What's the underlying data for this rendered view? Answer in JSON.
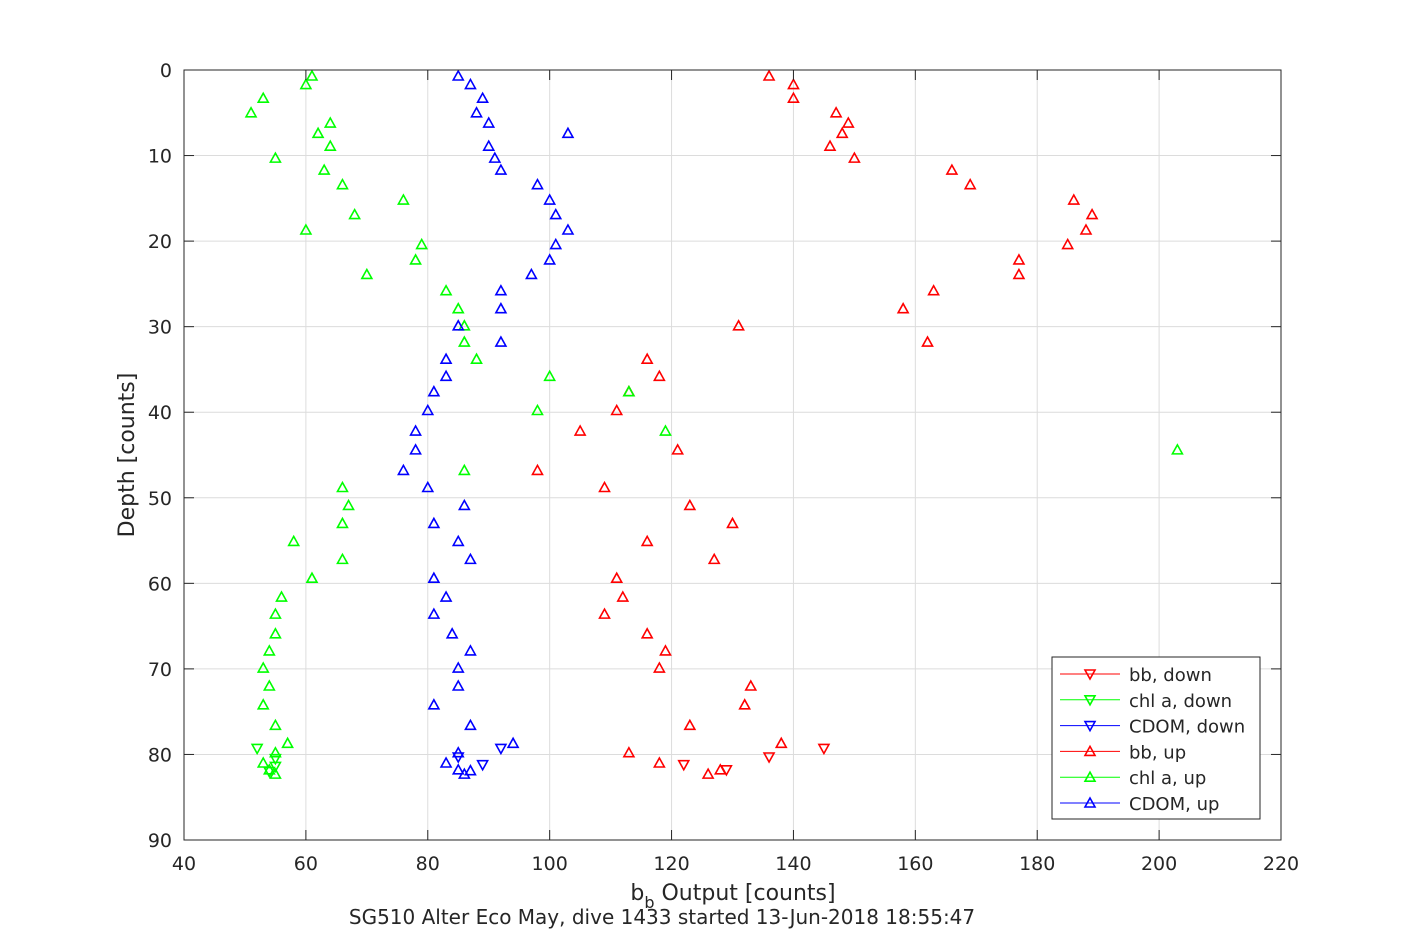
{
  "chart_data": {
    "type": "scatter",
    "xlabel_main": "b",
    "xlabel_sub": "b",
    "xlabel_rest": " Output [counts]",
    "ylabel": "Depth [counts]",
    "caption": "SG510 Alter Eco May, dive 1433 started 13-Jun-2018 18:55:47",
    "xlim": [
      40,
      220
    ],
    "ylim": [
      0,
      90
    ],
    "y_reversed": true,
    "grid": true,
    "legend_position": "bottom-right",
    "x_ticks": [
      40,
      60,
      80,
      100,
      120,
      140,
      160,
      180,
      200,
      220
    ],
    "y_ticks": [
      0,
      10,
      20,
      30,
      40,
      50,
      60,
      70,
      80,
      90
    ],
    "series": [
      {
        "name": "bb, down",
        "color": "#ff0000",
        "marker": "triangle-down",
        "points": [
          [
            122,
            81.2
          ],
          [
            129,
            81.8
          ],
          [
            136,
            80.3
          ],
          [
            145,
            79.3
          ]
        ]
      },
      {
        "name": "chl a, down",
        "color": "#00ff00",
        "marker": "triangle-down",
        "points": [
          [
            52,
            79.3
          ],
          [
            55,
            80.5
          ],
          [
            55,
            81.4
          ],
          [
            54,
            82.0
          ]
        ]
      },
      {
        "name": "CDOM, down",
        "color": "#0000ff",
        "marker": "triangle-down",
        "points": [
          [
            85,
            80.3
          ],
          [
            89,
            81.2
          ],
          [
            92,
            79.3
          ]
        ]
      },
      {
        "name": "bb, up",
        "color": "#ff0000",
        "marker": "triangle-up",
        "points": [
          [
            136,
            0.7
          ],
          [
            140,
            1.7
          ],
          [
            140,
            3.3
          ],
          [
            147,
            5.0
          ],
          [
            149,
            6.2
          ],
          [
            148,
            7.4
          ],
          [
            146,
            8.9
          ],
          [
            150,
            10.3
          ],
          [
            166,
            11.7
          ],
          [
            169,
            13.4
          ],
          [
            186,
            15.2
          ],
          [
            189,
            16.9
          ],
          [
            188,
            18.7
          ],
          [
            185,
            20.4
          ],
          [
            177,
            22.2
          ],
          [
            177,
            23.9
          ],
          [
            163,
            25.8
          ],
          [
            158,
            27.9
          ],
          [
            131,
            29.9
          ],
          [
            162,
            31.8
          ],
          [
            116,
            33.8
          ],
          [
            118,
            35.8
          ],
          [
            113,
            37.6
          ],
          [
            111,
            39.8
          ],
          [
            105,
            42.2
          ],
          [
            121,
            44.4
          ],
          [
            98,
            46.8
          ],
          [
            109,
            48.8
          ],
          [
            123,
            50.9
          ],
          [
            130,
            53.0
          ],
          [
            116,
            55.1
          ],
          [
            127,
            57.2
          ],
          [
            111,
            59.4
          ],
          [
            112,
            61.6
          ],
          [
            109,
            63.6
          ],
          [
            116,
            65.9
          ],
          [
            119,
            67.9
          ],
          [
            118,
            69.9
          ],
          [
            133,
            72.0
          ],
          [
            132,
            74.2
          ],
          [
            123,
            76.6
          ],
          [
            138,
            78.7
          ],
          [
            113,
            79.8
          ],
          [
            118,
            81.0
          ],
          [
            128,
            81.8
          ],
          [
            126,
            82.3
          ]
        ]
      },
      {
        "name": "chl a, up",
        "color": "#00ff00",
        "marker": "triangle-up",
        "points": [
          [
            61,
            0.7
          ],
          [
            60,
            1.7
          ],
          [
            53,
            3.3
          ],
          [
            51,
            5.0
          ],
          [
            64,
            6.2
          ],
          [
            62,
            7.4
          ],
          [
            64,
            8.9
          ],
          [
            55,
            10.3
          ],
          [
            63,
            11.7
          ],
          [
            66,
            13.4
          ],
          [
            76,
            15.2
          ],
          [
            68,
            16.9
          ],
          [
            60,
            18.7
          ],
          [
            79,
            20.4
          ],
          [
            78,
            22.2
          ],
          [
            70,
            23.9
          ],
          [
            83,
            25.8
          ],
          [
            85,
            27.9
          ],
          [
            86,
            29.9
          ],
          [
            86,
            31.8
          ],
          [
            88,
            33.8
          ],
          [
            100,
            35.8
          ],
          [
            113,
            37.6
          ],
          [
            98,
            39.8
          ],
          [
            119,
            42.2
          ],
          [
            203,
            44.4
          ],
          [
            86,
            46.8
          ],
          [
            66,
            48.8
          ],
          [
            67,
            50.9
          ],
          [
            66,
            53.0
          ],
          [
            58,
            55.1
          ],
          [
            66,
            57.2
          ],
          [
            61,
            59.4
          ],
          [
            56,
            61.6
          ],
          [
            55,
            63.6
          ],
          [
            55,
            65.9
          ],
          [
            54,
            67.9
          ],
          [
            53,
            69.9
          ],
          [
            54,
            72.0
          ],
          [
            53,
            74.2
          ],
          [
            55,
            76.6
          ],
          [
            57,
            78.7
          ],
          [
            55,
            79.8
          ],
          [
            53,
            81.0
          ],
          [
            54,
            81.8
          ],
          [
            55,
            82.3
          ]
        ]
      },
      {
        "name": "CDOM, up",
        "color": "#0000ff",
        "marker": "triangle-up",
        "points": [
          [
            85,
            0.7
          ],
          [
            87,
            1.7
          ],
          [
            89,
            3.3
          ],
          [
            88,
            5.0
          ],
          [
            90,
            6.2
          ],
          [
            103,
            7.4
          ],
          [
            90,
            8.9
          ],
          [
            91,
            10.3
          ],
          [
            92,
            11.7
          ],
          [
            98,
            13.4
          ],
          [
            100,
            15.2
          ],
          [
            101,
            16.9
          ],
          [
            103,
            18.7
          ],
          [
            101,
            20.4
          ],
          [
            100,
            22.2
          ],
          [
            97,
            23.9
          ],
          [
            92,
            25.8
          ],
          [
            92,
            27.9
          ],
          [
            85,
            29.9
          ],
          [
            92,
            31.8
          ],
          [
            83,
            33.8
          ],
          [
            83,
            35.8
          ],
          [
            81,
            37.6
          ],
          [
            80,
            39.8
          ],
          [
            78,
            42.2
          ],
          [
            78,
            44.4
          ],
          [
            76,
            46.8
          ],
          [
            80,
            48.8
          ],
          [
            86,
            50.9
          ],
          [
            81,
            53.0
          ],
          [
            85,
            55.1
          ],
          [
            87,
            57.2
          ],
          [
            81,
            59.4
          ],
          [
            83,
            61.6
          ],
          [
            81,
            63.6
          ],
          [
            84,
            65.9
          ],
          [
            87,
            67.9
          ],
          [
            85,
            69.9
          ],
          [
            85,
            72.0
          ],
          [
            81,
            74.2
          ],
          [
            87,
            76.6
          ],
          [
            94,
            78.7
          ],
          [
            85,
            79.8
          ],
          [
            83,
            81.0
          ],
          [
            85,
            81.8
          ],
          [
            86,
            82.3
          ],
          [
            87,
            81.9
          ]
        ]
      }
    ]
  }
}
